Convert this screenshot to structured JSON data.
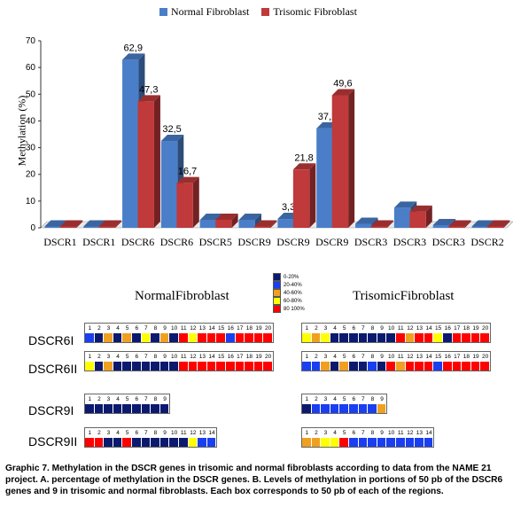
{
  "chart_data": {
    "type": "bar",
    "categories": [
      "DSCR1",
      "DSCR1",
      "DSCR6",
      "DSCR6",
      "DSCR5",
      "DSCR9",
      "DSCR9",
      "DSCR9",
      "DSCR3",
      "DSCR3",
      "DSCR3",
      "DSCR2"
    ],
    "series": [
      {
        "name": "Normal Fibroblast",
        "color": "#4a7ec9",
        "values": [
          0.5,
          0.5,
          62.9,
          32.5,
          3.0,
          3.0,
          3.3,
          37.2,
          1.5,
          7.5,
          1.0,
          0.5
        ],
        "labels": [
          "",
          "",
          "62,9",
          "32,5",
          "",
          "",
          "3,3",
          "37,2",
          "",
          "",
          "",
          ""
        ]
      },
      {
        "name": "Trisomic Fibroblast",
        "color": "#c0393b",
        "values": [
          0.5,
          0.5,
          47.3,
          16.7,
          3.0,
          0.5,
          21.8,
          49.6,
          0.5,
          6.0,
          0.5,
          0.5
        ],
        "labels": [
          "",
          "",
          "47,3",
          "16,7",
          "",
          "",
          "21,8",
          "49,6",
          "",
          "",
          "",
          ""
        ]
      }
    ],
    "ylabel": "Methylation (%)",
    "yticks": [
      0,
      10,
      20,
      30,
      40,
      50,
      60,
      70
    ],
    "ylim": [
      0,
      70
    ]
  },
  "heatmap": {
    "panel_titles": {
      "normal": "NormalFibroblast",
      "trisomic": "TrisomicFibroblast"
    },
    "scale": [
      {
        "label": "0-20%",
        "color": "#0b1a6e"
      },
      {
        "label": "20-40%",
        "color": "#1a3ff0"
      },
      {
        "label": "40-60%",
        "color": "#f0a020"
      },
      {
        "label": "60-80%",
        "color": "#ffff00"
      },
      {
        "label": "80 100%",
        "color": "#ff0000"
      }
    ],
    "rows": [
      {
        "label": "DSCR6I",
        "normal": [
          "B",
          "D",
          "O",
          "D",
          "O",
          "D",
          "Y",
          "D",
          "O",
          "D",
          "R",
          "Y",
          "R",
          "R",
          "R",
          "B",
          "R",
          "R",
          "R",
          "R"
        ],
        "trisomic": [
          "Y",
          "O",
          "Y",
          "D",
          "D",
          "D",
          "D",
          "D",
          "D",
          "D",
          "R",
          "O",
          "R",
          "R",
          "Y",
          "D",
          "R",
          "R",
          "R",
          "R"
        ]
      },
      {
        "label": "DSCR6II",
        "normal": [
          "Y",
          "D",
          "O",
          "D",
          "D",
          "D",
          "D",
          "D",
          "D",
          "D",
          "R",
          "R",
          "R",
          "R",
          "R",
          "R",
          "R",
          "R",
          "R",
          "R"
        ],
        "trisomic": [
          "B",
          "B",
          "O",
          "D",
          "O",
          "D",
          "D",
          "B",
          "D",
          "R",
          "O",
          "R",
          "R",
          "R",
          "B",
          "R",
          "R",
          "R",
          "R",
          "R"
        ]
      },
      {
        "label": "DSCR9I",
        "normal": [
          "D",
          "D",
          "D",
          "D",
          "D",
          "D",
          "D",
          "D",
          "D"
        ],
        "trisomic": [
          "D",
          "B",
          "B",
          "B",
          "B",
          "B",
          "B",
          "B",
          "O"
        ]
      },
      {
        "label": "DSCR9II",
        "normal": [
          "R",
          "R",
          "D",
          "D",
          "R",
          "D",
          "D",
          "D",
          "D",
          "D",
          "D",
          "Y",
          "B",
          "B"
        ],
        "trisomic": [
          "O",
          "O",
          "Y",
          "Y",
          "R",
          "B",
          "B",
          "B",
          "B",
          "B",
          "B",
          "B",
          "B",
          "B"
        ]
      }
    ]
  },
  "caption": "Graphic 7. Methylation in the DSCR genes in trisomic and normal fibroblasts according to data from the NAME 21 project. A. percentage of methylation in the DSCR genes. B. Levels of methylation in portions of 50 pb of the DSCR6 genes and 9 in trisomic and normal fibroblasts. Each box corresponds to 50 pb of each of the regions."
}
